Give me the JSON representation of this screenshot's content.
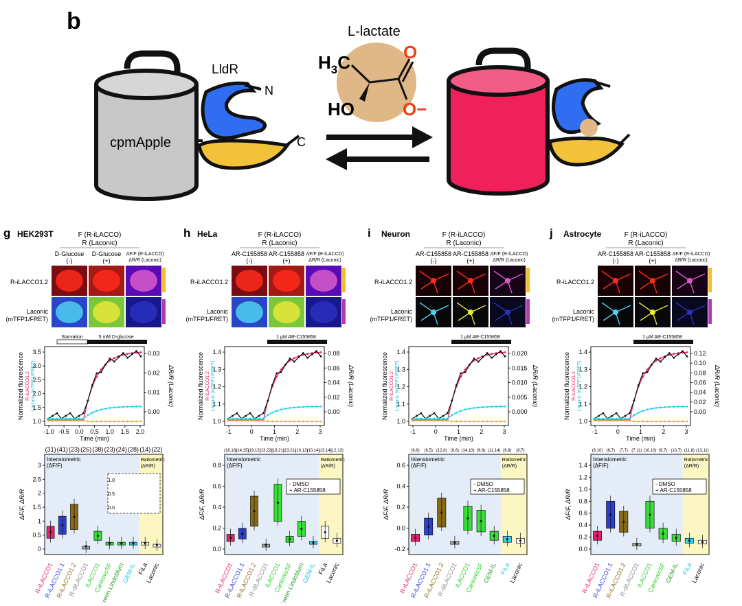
{
  "panel_b": {
    "letter": "b",
    "lactate_label": "L-lactate",
    "methyl": "H3C",
    "hydroxyl": "HO",
    "oxygen": "O",
    "oxygen_minus": "O−",
    "lldr_label": "LldR",
    "n_term": "N",
    "c_term": "C",
    "cpm_label": "cpmApple",
    "colors": {
      "cpm_gray": "#c8c8c8",
      "cpm_red": "#f0205a",
      "lldr_blue": "#2f6ef0",
      "lldr_yellow": "#f2c33a",
      "lactate_bg": "#e0b887"
    }
  },
  "common": {
    "f_label": "F (R-iLACCO)",
    "r_label": "R (Laconic)",
    "ratio_label": "ΔF/F (R-iLACCO)",
    "ratio_label2": "ΔR/R (Laconic)",
    "row1": "R-iLACCO1.2",
    "row2a": "Laconic",
    "row2b": "(mTFP1/FRET)",
    "minus": "(-)",
    "plus": "(+)",
    "y_left": "Normalized fluorescence",
    "y_left2": "R-iLACCO1.2",
    "y_left3": "Laconic (mTFP1/FRET)",
    "y_right": "ΔR/R (Laconic)",
    "xlabel": "Time (min)",
    "intensiometric": "Intensiometric",
    "intensio_unit": "(ΔF/F)",
    "ratiometric": "Ratiometric",
    "ratio_unit": "(ΔR/R)",
    "box_ylabel": "ΔF/F, ΔR/R",
    "legend_minus": "- DMSO",
    "legend_plus": "+ AR-C155858",
    "colors": {
      "pink": "#e8216a",
      "black": "#111111",
      "cyan": "#20d0e8",
      "yellow": "#d6b13a",
      "blue_bg": "#e3ecf7",
      "yellow_bg": "#fbf6c2"
    }
  },
  "panels": [
    {
      "letter": "g",
      "title": "HEK293T",
      "cond_minus": "D-Glucose",
      "cond_plus": "D-Glucose",
      "bar1": "Starvation",
      "bar2": "5 mM D-glucose",
      "x_ticks": [
        "-1.0",
        "-0.5",
        "0.0",
        "0.5",
        "1.0",
        "1.5",
        "2.0"
      ],
      "y_ticks": [
        "1.0",
        "1.5",
        "2.0",
        "2.5",
        "3.0",
        "3.5"
      ],
      "y2_ticks": [
        "0.00",
        "0.01",
        "0.02",
        "0.03"
      ],
      "counts": [
        "(31)",
        "(41)",
        "(23)",
        "(26)",
        "(38)",
        "(23)",
        "(24)",
        "(28)",
        "(14)",
        "(22)"
      ],
      "box_ticks": [
        "0",
        "0.5",
        "1",
        "1.5",
        "2",
        "2.5",
        "3"
      ],
      "inset_ticks": [
        "0.0",
        "0.5",
        "1.0"
      ],
      "labels": [
        "R-iLACCO1",
        "R-iLACCO1.1",
        "R-iLACCO1.2",
        "R-diLACCO1",
        "iLACCO1",
        "CanlonicSF",
        "Green Lindoblum",
        "GEM-IL",
        "FiLa",
        "Laconic"
      ]
    },
    {
      "letter": "h",
      "title": "HeLa",
      "cond_minus": "AR-C155858",
      "cond_plus": "AR-C155858",
      "bar1": "",
      "bar2": "1 μM AR-C155858",
      "x_ticks": [
        "-1",
        "0",
        "1",
        "2",
        "3"
      ],
      "y_ticks": [
        "1.0",
        "1.1",
        "1.2",
        "1.3",
        "1.4"
      ],
      "y2_ticks": [
        "0.00",
        "0.02",
        "0.04",
        "0.06",
        "0.08"
      ],
      "counts": [
        "(16,18)",
        "(14,15)",
        "(19,12)",
        "(13,22)",
        "(18,21)",
        "(13,21)",
        "(10,12)",
        "(10,14)",
        "(13,14)",
        "(12,13)"
      ],
      "box_ticks": [
        "0.0",
        "0.2",
        "0.4",
        "0.6",
        "0.8"
      ],
      "labels": [
        "R-iLACCO1",
        "R-iLACCO1.1",
        "R-iLACCO1.2",
        "R-diLACCO1",
        "iLACCO1",
        "CanlonicSF",
        "Green Lindoblum",
        "GEM-IL",
        "FiLa",
        "Laconic"
      ]
    },
    {
      "letter": "i",
      "title": "Neuron",
      "cond_minus": "AR-C155858",
      "cond_plus": "AR-C155858",
      "bar1": "",
      "bar2": "1 μM AR-C155858",
      "x_ticks": [
        "-1",
        "0",
        "1",
        "2",
        "3"
      ],
      "y_ticks": [
        "1.0",
        "1.1",
        "1.2",
        "1.3",
        "1.4"
      ],
      "y2_ticks": [
        "0.000",
        "0.005",
        "0.010",
        "0.015",
        "0.020"
      ],
      "counts": [
        "(6,6)",
        "(6,5)",
        "(12,8)",
        "(6,6)",
        "(14,10)",
        "(9,8)",
        "(11,14)",
        "(9,9)",
        "(6,7)"
      ],
      "box_ticks": [
        "-0.2",
        "0.0",
        "0.2",
        "0.4",
        "0.6"
      ],
      "labels": [
        "R-iLACCO1",
        "R-iLACCO1.1",
        "R-iLACCO1.2",
        "R-diLACCO1",
        "iLACCO1",
        "CanlonicSF",
        "GEM-IL",
        "FiLa",
        "Laconic"
      ]
    },
    {
      "letter": "j",
      "title": "Astrocyte",
      "cond_minus": "AR-C155858",
      "cond_plus": "AR-C155858",
      "bar1": "",
      "bar2": "1 μM AR-C155858",
      "x_ticks": [
        "-1",
        "0",
        "1",
        "2",
        "3"
      ],
      "y_ticks": [
        "1.0",
        "1.1",
        "1.2",
        "1.3",
        "1.4"
      ],
      "y2_ticks": [
        "0.00",
        "0.02",
        "0.04",
        "0.06",
        "0.08",
        "0.10",
        "0.12"
      ],
      "counts": [
        "(6,10)",
        "(6,7)",
        "(7,7)",
        "(7,11)",
        "(10,10)",
        "(9,7)",
        "(10,7)",
        "(11,8)",
        "(13,11)"
      ],
      "box_ticks": [
        "0.0",
        "0.2",
        "0.4",
        "0.6",
        "0.8",
        "1.0",
        "1.2",
        "1.4"
      ],
      "labels": [
        "R-iLACCO1",
        "R-iLACCO1.1",
        "R-iLACCO1.2",
        "R-diLACCO1",
        "iLACCO1",
        "CanlonicSF",
        "GEM-IL",
        "FiLa",
        "Laconic"
      ]
    }
  ]
}
